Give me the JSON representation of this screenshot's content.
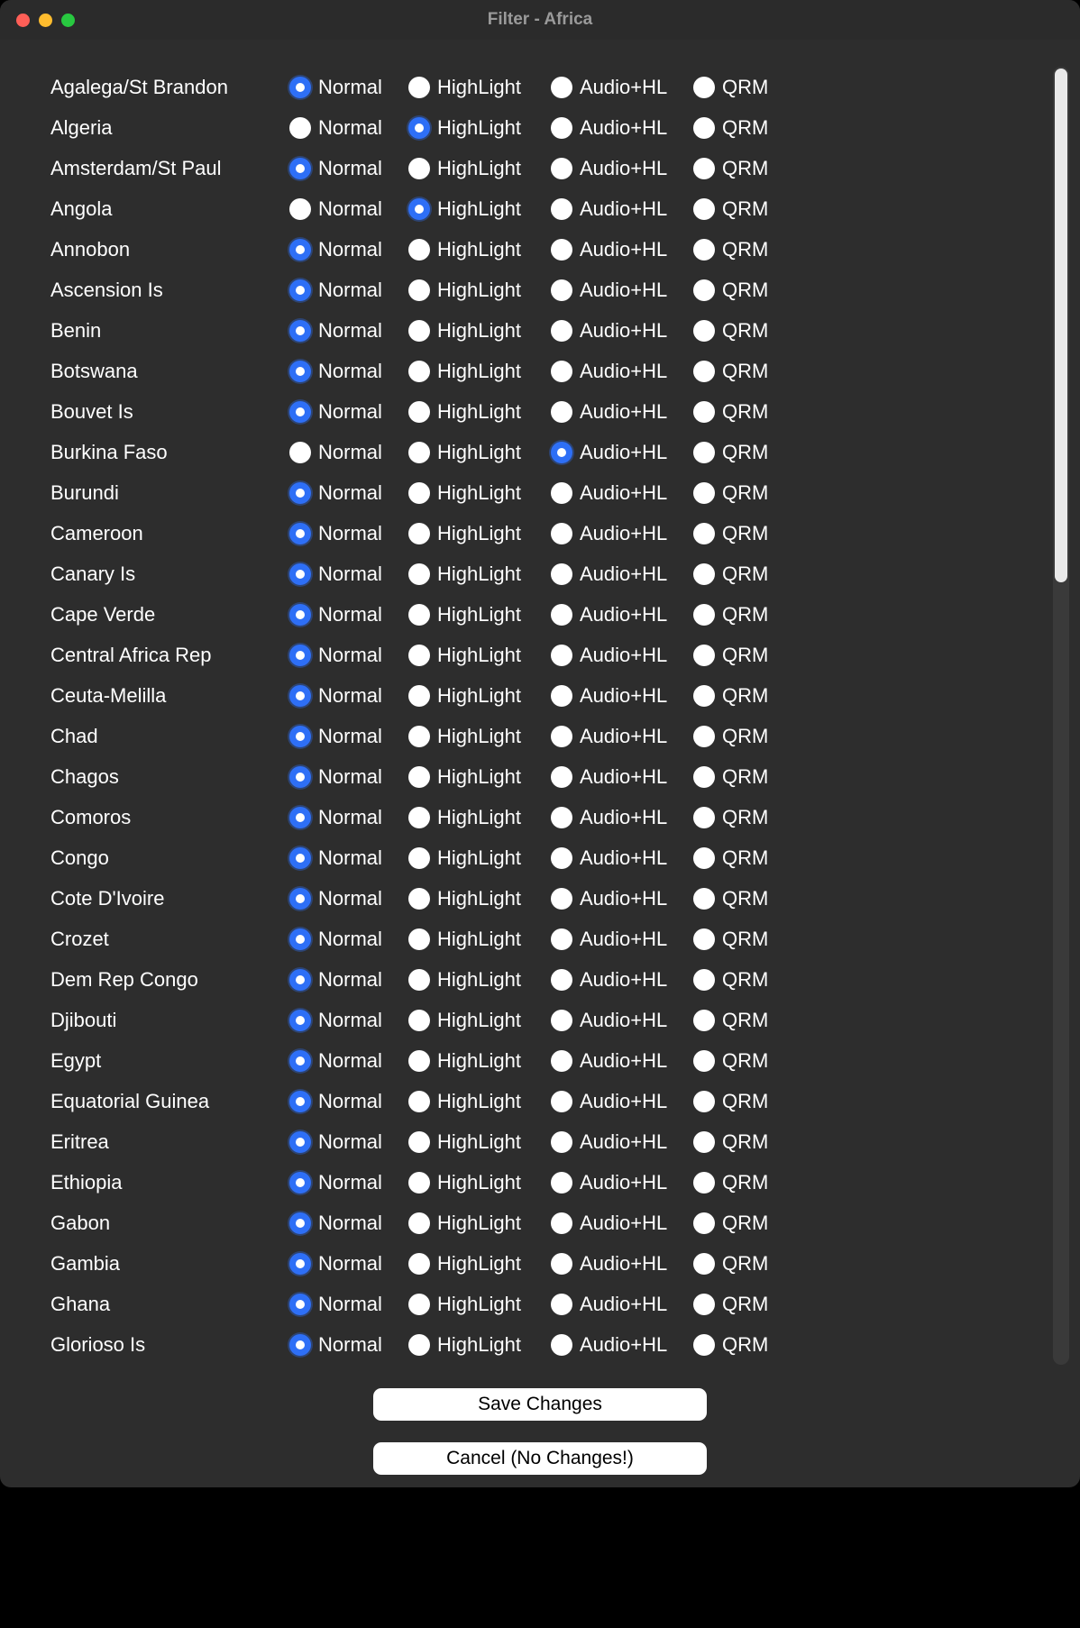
{
  "window": {
    "title": "Filter - Africa"
  },
  "options": {
    "normal": "Normal",
    "highlight": "HighLight",
    "audiohl": "Audio+HL",
    "qrm": "QRM"
  },
  "countries": [
    {
      "name": "Agalega/St Brandon",
      "selected": "normal"
    },
    {
      "name": "Algeria",
      "selected": "highlight"
    },
    {
      "name": "Amsterdam/St Paul",
      "selected": "normal"
    },
    {
      "name": "Angola",
      "selected": "highlight"
    },
    {
      "name": "Annobon",
      "selected": "normal"
    },
    {
      "name": "Ascension Is",
      "selected": "normal"
    },
    {
      "name": "Benin",
      "selected": "normal"
    },
    {
      "name": "Botswana",
      "selected": "normal"
    },
    {
      "name": "Bouvet Is",
      "selected": "normal"
    },
    {
      "name": "Burkina Faso",
      "selected": "audiohl"
    },
    {
      "name": "Burundi",
      "selected": "normal"
    },
    {
      "name": "Cameroon",
      "selected": "normal"
    },
    {
      "name": "Canary Is",
      "selected": "normal"
    },
    {
      "name": "Cape Verde",
      "selected": "normal"
    },
    {
      "name": "Central Africa Rep",
      "selected": "normal"
    },
    {
      "name": "Ceuta-Melilla",
      "selected": "normal"
    },
    {
      "name": "Chad",
      "selected": "normal"
    },
    {
      "name": "Chagos",
      "selected": "normal"
    },
    {
      "name": "Comoros",
      "selected": "normal"
    },
    {
      "name": "Congo",
      "selected": "normal"
    },
    {
      "name": "Cote D'Ivoire",
      "selected": "normal"
    },
    {
      "name": "Crozet",
      "selected": "normal"
    },
    {
      "name": "Dem Rep Congo",
      "selected": "normal"
    },
    {
      "name": "Djibouti",
      "selected": "normal"
    },
    {
      "name": "Egypt",
      "selected": "normal"
    },
    {
      "name": "Equatorial Guinea",
      "selected": "normal"
    },
    {
      "name": "Eritrea",
      "selected": "normal"
    },
    {
      "name": "Ethiopia",
      "selected": "normal"
    },
    {
      "name": "Gabon",
      "selected": "normal"
    },
    {
      "name": "Gambia",
      "selected": "normal"
    },
    {
      "name": "Ghana",
      "selected": "normal"
    },
    {
      "name": "Glorioso Is",
      "selected": "normal"
    }
  ],
  "buttons": {
    "save": "Save Changes",
    "cancel": "Cancel (No Changes!)"
  },
  "colors": {
    "window_bg": "#2d2d2d",
    "text": "#ffffff",
    "title_text": "#9a9a9a",
    "radio_unselected": "#ffffff",
    "radio_selected": "#2e6ff6",
    "button_bg": "#ffffff",
    "button_text": "#000000",
    "scrollbar_track": "#3a3a3a",
    "scrollbar_thumb": "#e9e9e9"
  }
}
